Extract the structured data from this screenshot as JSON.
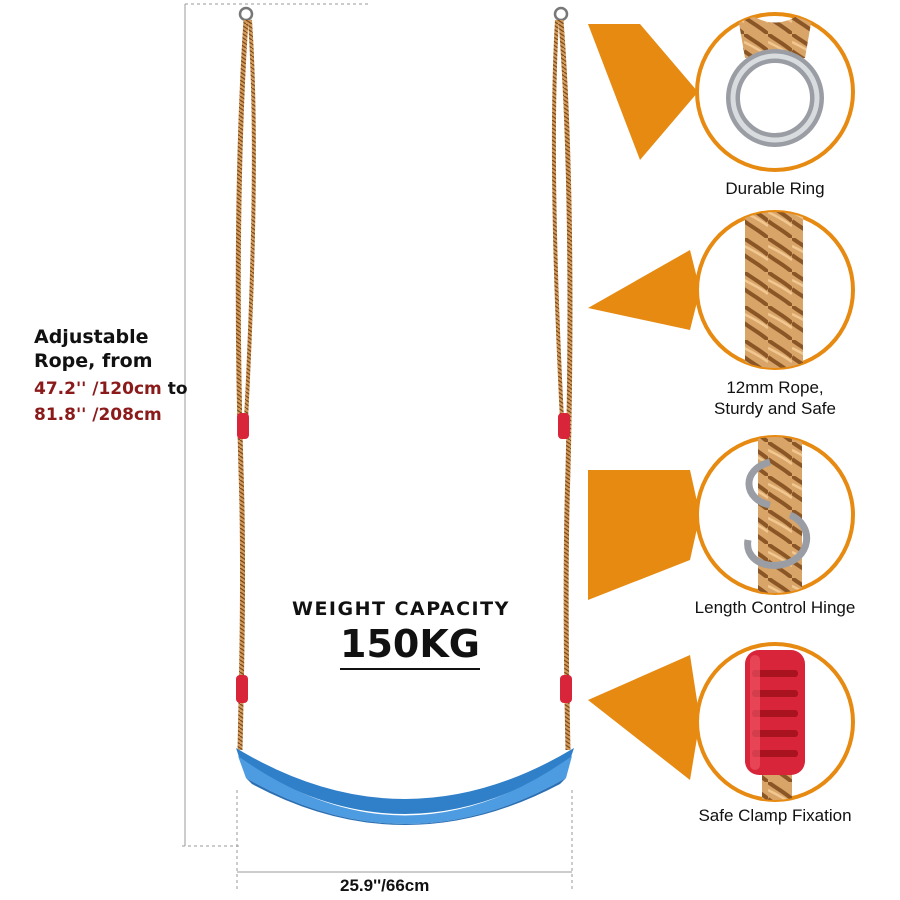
{
  "rope_note": {
    "title_line1": "Adjustable",
    "title_line2": "Rope, from",
    "min_length": "47.2'' /120cm",
    "connector": "to",
    "max_length": "81.8'' /208cm"
  },
  "weight": {
    "label": "WEIGHT CAPACITY",
    "value": "150KG"
  },
  "seat_width": "25.9''/66cm",
  "features": [
    {
      "caption_line1": "Durable Ring",
      "caption_line2": "",
      "icon": "ring-closeup"
    },
    {
      "caption_line1": "12mm Rope,",
      "caption_line2": "Sturdy and Safe",
      "icon": "rope-closeup"
    },
    {
      "caption_line1": "Length Control Hinge",
      "caption_line2": "",
      "icon": "hinge-closeup"
    },
    {
      "caption_line1": "Safe Clamp Fixation",
      "caption_line2": "",
      "icon": "clamp-closeup"
    }
  ],
  "colors": {
    "accent_orange": "#e68a12",
    "seat_blue": "#3d8fd9",
    "rope_tan": "#c98b4a",
    "clamp_red": "#d8253a",
    "dimension_text_red": "#8b1a1a"
  }
}
